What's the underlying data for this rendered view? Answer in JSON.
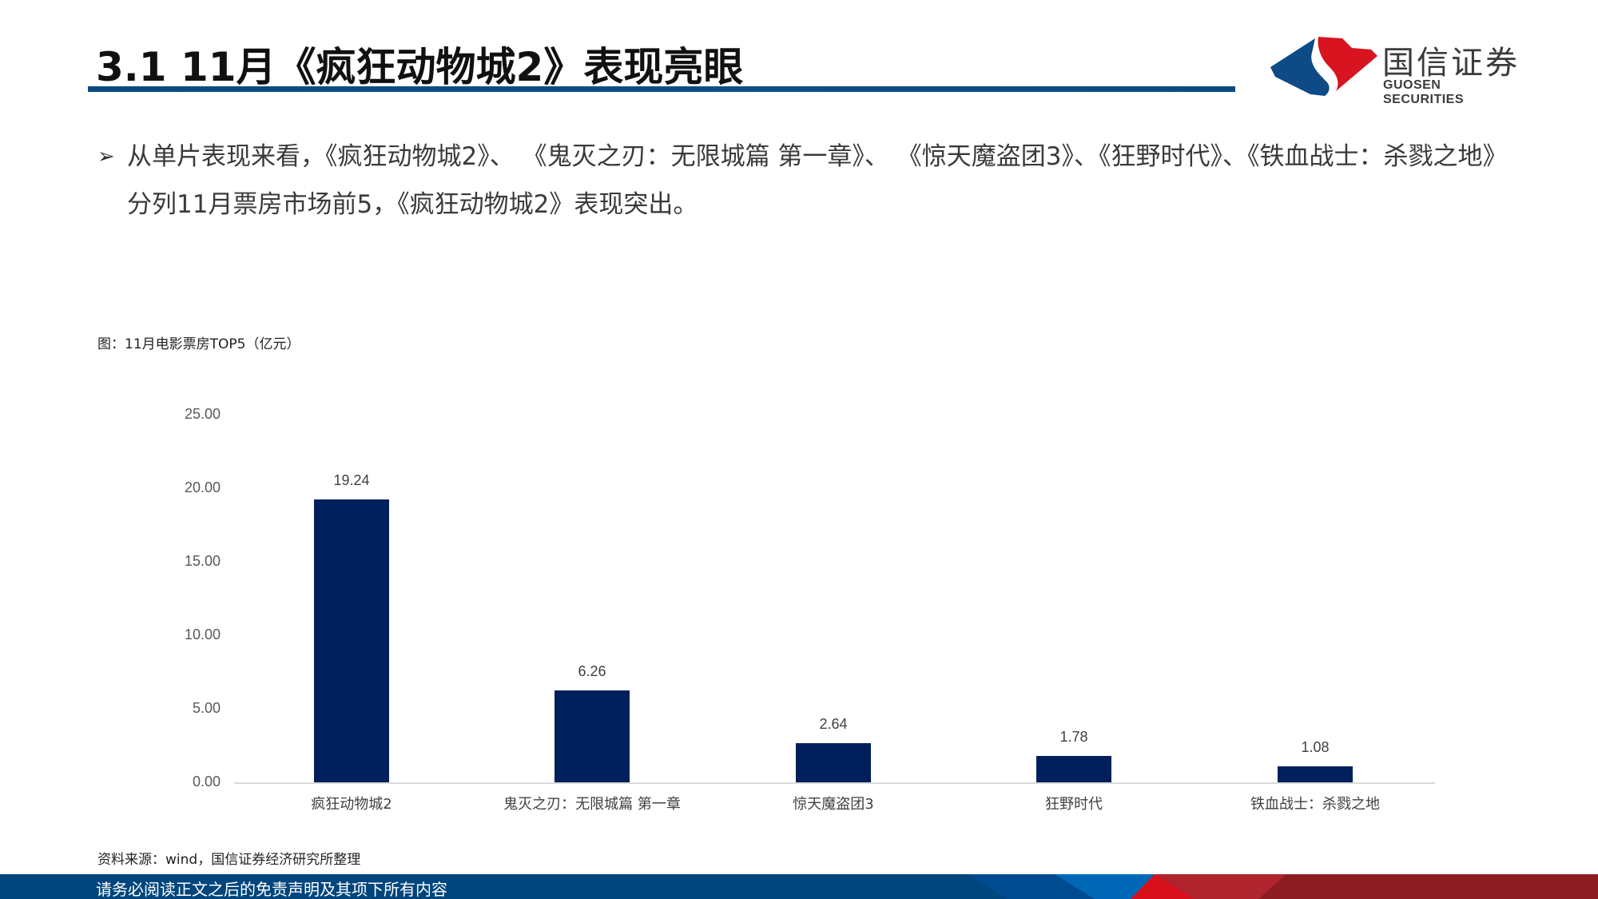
{
  "header": {
    "title": "3.1 11月《疯狂动物城2》表现亮眼",
    "logo_cn": "国信证券",
    "logo_en": "GUOSEN SECURITIES",
    "logo_icon": "guosen-logo-icon"
  },
  "bullet": {
    "icon": "triangle-arrow-icon",
    "arrow_glyph": "➢",
    "text": "从单片表现来看，《疯狂动物城2》、 《鬼灭之刃：无限城篇 第一章》、 《惊天魔盗团3》、《狂野时代》、《铁血战士：杀戮之地》分列11月票房市场前5，《疯狂动物城2》表现突出。"
  },
  "caption": "图：11月电影票房TOP5（亿元）",
  "chart_data": {
    "type": "bar",
    "title": "11月电影票房TOP5（亿元）",
    "categories": [
      "疯狂动物城2",
      "鬼灭之刃：无限城篇 第一章",
      "惊天魔盗团3",
      "狂野时代",
      "铁血战士：杀戮之地"
    ],
    "values": [
      19.24,
      6.26,
      2.64,
      1.78,
      1.08
    ],
    "value_labels": [
      "19.24",
      "6.26",
      "2.64",
      "1.78",
      "1.08"
    ],
    "xlabel": "",
    "ylabel": "亿元",
    "ylim": [
      0,
      25
    ],
    "yticks": [
      "0.00",
      "5.00",
      "10.00",
      "15.00",
      "20.00",
      "25.00"
    ],
    "grid": false,
    "legend": "none",
    "bar_color": "#00205b"
  },
  "source": "资料来源：wind，国信证券经济研究所整理",
  "footer": {
    "disclaimer": "请务必阅读正文之后的免责声明及其项下所有内容",
    "band_color": "#00457c"
  },
  "colors": {
    "title_bar": "#0a4a80",
    "logo_blue": "#0d4a86",
    "logo_red": "#d7141f",
    "bar": "#00205b"
  }
}
